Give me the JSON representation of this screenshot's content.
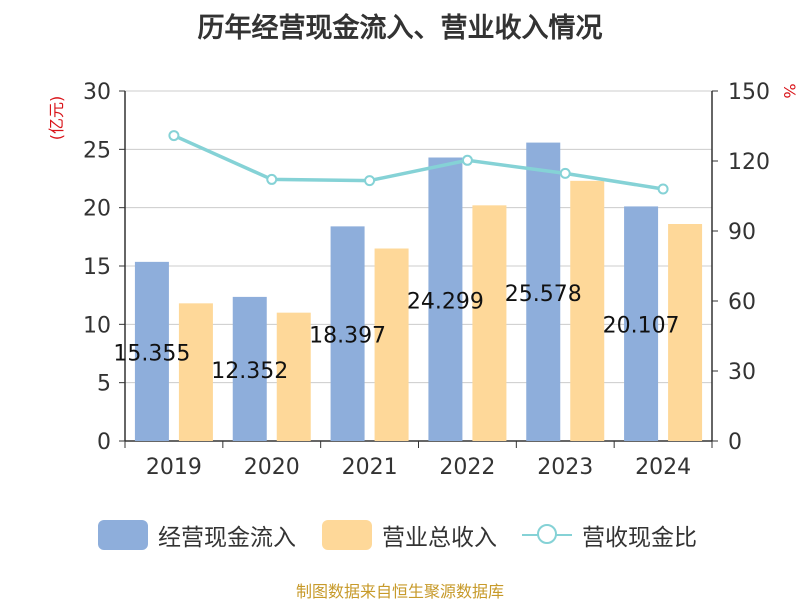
{
  "chart_data": {
    "type": "bar",
    "title": "历年经营现金流入、营业收入情况",
    "categories": [
      "2019",
      "2020",
      "2021",
      "2022",
      "2023",
      "2024"
    ],
    "series": [
      {
        "name": "经营现金流入",
        "type": "bar",
        "axis": "left",
        "color": "#8eaedb",
        "values": [
          15.355,
          12.352,
          18.397,
          24.299,
          25.578,
          20.107
        ],
        "labels": [
          "15.355",
          "12.352",
          "18.397",
          "24.299",
          "25.578",
          "20.107"
        ]
      },
      {
        "name": "营业总收入",
        "type": "bar",
        "axis": "left",
        "color": "#fed899",
        "values": [
          11.8,
          11.0,
          16.5,
          20.2,
          22.3,
          18.6
        ]
      },
      {
        "name": "营收现金比",
        "type": "line",
        "axis": "right",
        "color": "#85d2d6",
        "values": [
          130.9,
          112.1,
          111.6,
          120.3,
          114.7,
          108.0
        ]
      }
    ],
    "left_axis": {
      "label": "(亿元)",
      "ylim": [
        0,
        30
      ],
      "ticks": [
        0,
        5,
        10,
        15,
        20,
        25,
        30
      ]
    },
    "right_axis": {
      "label": "%",
      "ylim": [
        0,
        150
      ],
      "ticks": [
        0,
        30,
        60,
        90,
        120,
        150
      ]
    },
    "grid": true,
    "legend_position": "bottom"
  },
  "source": "制图数据来自恒生聚源数据库"
}
